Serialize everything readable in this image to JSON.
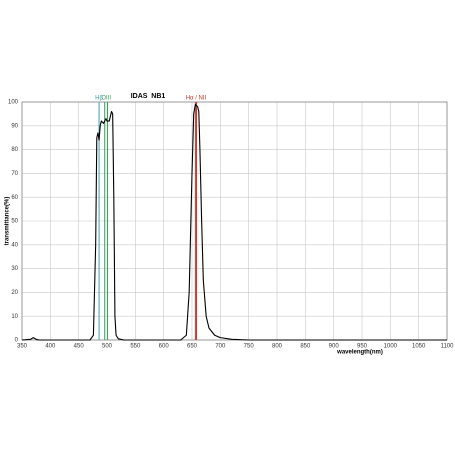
{
  "chart_data": {
    "type": "line",
    "title": "IDAS  NB1",
    "x_label": "wavelength(nm)",
    "y_label": "transmittance(%)",
    "x": [
      350,
      365,
      370,
      375,
      380,
      470,
      476,
      480,
      482,
      484,
      486,
      488,
      490,
      494,
      498,
      500,
      504,
      506,
      508,
      510,
      512,
      514,
      516,
      520,
      530,
      630,
      640,
      645,
      650,
      653,
      656,
      660,
      662,
      664,
      667,
      670,
      675,
      680,
      690,
      700,
      720,
      750,
      1100
    ],
    "values": [
      0,
      0.3,
      1,
      0.3,
      0,
      0,
      2,
      40,
      85,
      87,
      84,
      90,
      92,
      91,
      93,
      92,
      92,
      94,
      96,
      95,
      60,
      10,
      2,
      0.5,
      0,
      0,
      2,
      20,
      70,
      95,
      99,
      98,
      96,
      80,
      50,
      25,
      10,
      5,
      2,
      1,
      0.3,
      0,
      0
    ],
    "color": "#000000",
    "xlim": [
      350,
      1100
    ],
    "xticks": [
      350,
      400,
      450,
      500,
      550,
      600,
      650,
      700,
      750,
      800,
      850,
      900,
      950,
      1000,
      1050,
      1100
    ],
    "ylim": [
      0,
      100
    ],
    "yticks": [
      0,
      10,
      20,
      30,
      40,
      50,
      60,
      70,
      80,
      90,
      100
    ],
    "grid": true,
    "annotations": [
      {
        "label": "Hβ",
        "lines": [
          486
        ],
        "color": "#35a6b0"
      },
      {
        "label": "OIII",
        "lines": [
          496,
          501
        ],
        "color": "#3a9a5a"
      },
      {
        "label": "Hα / NII",
        "lines": [
          656,
          658
        ],
        "color": "#c0392b"
      }
    ]
  }
}
